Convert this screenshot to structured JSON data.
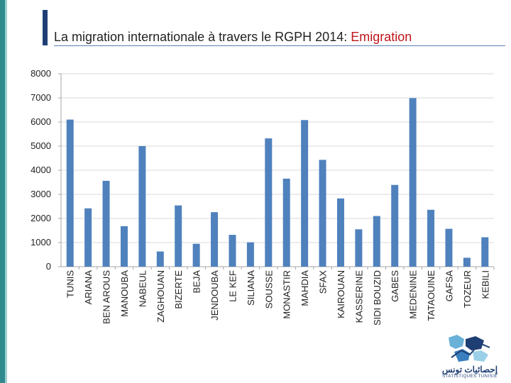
{
  "title": {
    "main": "La migration internationale à travers le RGPH 2014: ",
    "accent": "Emigration"
  },
  "colors": {
    "bar": "#4f81bd",
    "accent": "#c0151b",
    "grid": "#d9d9d9"
  },
  "logo": {
    "name": "إحصائيات تونس",
    "subtitle": "STATISTIQUES TUNISIE"
  },
  "chart_data": {
    "type": "bar",
    "title": "",
    "xlabel": "",
    "ylabel": "",
    "ylim": [
      0,
      8000
    ],
    "yticks": [
      0,
      1000,
      2000,
      3000,
      4000,
      5000,
      6000,
      7000,
      8000
    ],
    "categories": [
      "TUNIS",
      "ARIANA",
      "BEN AROUS",
      "MANOUBA",
      "NABEUL",
      "ZAGHOUAN",
      "BIZERTE",
      "BEJA",
      "JENDOUBA",
      "LE KEF",
      "SILIANA",
      "SOUSSE",
      "MONASTIR",
      "MAHDIA",
      "SFAX",
      "KAIROUAN",
      "KASSERINE",
      "SIDI BOUZID",
      "GABES",
      "MEDENINE",
      "TATAOUINE",
      "GAFSA",
      "TOZEUR",
      "KEBILI"
    ],
    "values": [
      6100,
      2420,
      3560,
      1680,
      5000,
      630,
      2540,
      950,
      2260,
      1320,
      1010,
      5320,
      3650,
      6080,
      4430,
      2830,
      1550,
      2100,
      3390,
      6990,
      2360,
      1570,
      370,
      1220
    ]
  }
}
